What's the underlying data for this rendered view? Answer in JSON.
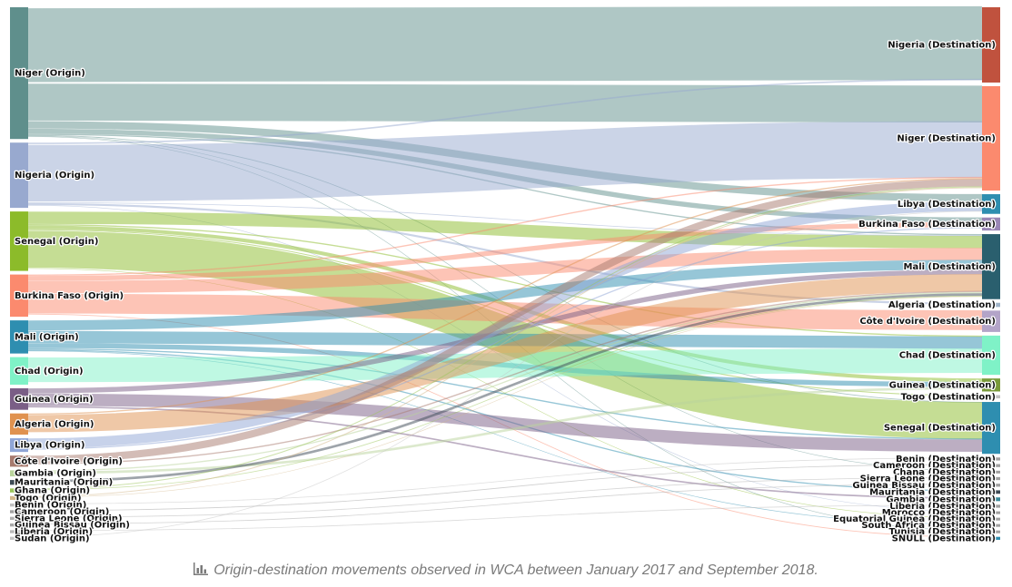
{
  "caption": {
    "icon": "bar-chart-icon",
    "text": "Origin-destination movements observed in WCA between January 2017 and September 2018."
  },
  "chart_data": {
    "type": "sankey",
    "title": "",
    "nodes": [
      {
        "name": "Niger (Origin)",
        "side": "origin",
        "color": "#5f8f8c"
      },
      {
        "name": "Nigeria (Origin)",
        "side": "origin",
        "color": "#98a9cf"
      },
      {
        "name": "Senegal (Origin)",
        "side": "origin",
        "color": "#8cbb2a"
      },
      {
        "name": "Burkina Faso (Origin)",
        "side": "origin",
        "color": "#fb8a6e"
      },
      {
        "name": "Mali (Origin)",
        "side": "origin",
        "color": "#2e8eb0"
      },
      {
        "name": "Chad (Origin)",
        "side": "origin",
        "color": "#7ff2c7"
      },
      {
        "name": "Guinea (Origin)",
        "side": "origin",
        "color": "#7a5e86"
      },
      {
        "name": "Algeria (Origin)",
        "side": "origin",
        "color": "#e0924f"
      },
      {
        "name": "Libya (Origin)",
        "side": "origin",
        "color": "#8fa5d6"
      },
      {
        "name": "Côte d'Ivoire (Origin)",
        "side": "origin",
        "color": "#a77a6e"
      },
      {
        "name": "Gambia (Origin)",
        "side": "origin",
        "color": "#b9d49b"
      },
      {
        "name": "Mauritania (Origin)",
        "side": "origin",
        "color": "#3d4a55"
      },
      {
        "name": "Ghana (Origin)",
        "side": "origin",
        "color": "#9bc65a"
      },
      {
        "name": "Togo (Origin)",
        "side": "origin",
        "color": "#d3b88a"
      },
      {
        "name": "Benin (Origin)",
        "side": "origin",
        "color": "#c0c0c0"
      },
      {
        "name": "Cameroon (Origin)",
        "side": "origin",
        "color": "#a0a0a0"
      },
      {
        "name": "Sierra Leone (Origin)",
        "side": "origin",
        "color": "#b0b0b0"
      },
      {
        "name": "Guinea Bissau (Origin)",
        "side": "origin",
        "color": "#a8a8a8"
      },
      {
        "name": "Liberia (Origin)",
        "side": "origin",
        "color": "#b8b8b8"
      },
      {
        "name": "Sudan (Origin)",
        "side": "origin",
        "color": "#c4c4c4"
      },
      {
        "name": "Nigeria (Destination)",
        "side": "destination",
        "color": "#c0523e"
      },
      {
        "name": "Niger (Destination)",
        "side": "destination",
        "color": "#fb8a6e"
      },
      {
        "name": "Libya (Destination)",
        "side": "destination",
        "color": "#2e8eb0"
      },
      {
        "name": "Burkina Faso (Destination)",
        "side": "destination",
        "color": "#9a86b6"
      },
      {
        "name": "Mali (Destination)",
        "side": "destination",
        "color": "#2a5f6e"
      },
      {
        "name": "Algeria (Destination)",
        "side": "destination",
        "color": "#9fb3c8"
      },
      {
        "name": "Côte d'Ivoire (Destination)",
        "side": "destination",
        "color": "#b3a4c8"
      },
      {
        "name": "Chad (Destination)",
        "side": "destination",
        "color": "#7ff2c7"
      },
      {
        "name": "Guinea (Destination)",
        "side": "destination",
        "color": "#7a9a3a"
      },
      {
        "name": "Togo (Destination)",
        "side": "destination",
        "color": "#c0c0c0"
      },
      {
        "name": "Senegal (Destination)",
        "side": "destination",
        "color": "#2e8eb0"
      },
      {
        "name": "Benin (Destination)",
        "side": "destination",
        "color": "#a0a0a0"
      },
      {
        "name": "Cameroon (Destination)",
        "side": "destination",
        "color": "#a0a0a0"
      },
      {
        "name": "Chana (Destination)",
        "side": "destination",
        "color": "#a0a0a0"
      },
      {
        "name": "Sierra Leone (Destination)",
        "side": "destination",
        "color": "#a0a0a0"
      },
      {
        "name": "Guinea Bissau (Destination)",
        "side": "destination",
        "color": "#a0a0a0"
      },
      {
        "name": "Mauritania (Destination)",
        "side": "destination",
        "color": "#3d4a55"
      },
      {
        "name": "Gambia (Destination)",
        "side": "destination",
        "color": "#3a8a9a"
      },
      {
        "name": "Liberia (Destination)",
        "side": "destination",
        "color": "#a0a0a0"
      },
      {
        "name": "Morocco (Destination)",
        "side": "destination",
        "color": "#a0a0a0"
      },
      {
        "name": "Equatorial Guinea (Destination)",
        "side": "destination",
        "color": "#a0a0a0"
      },
      {
        "name": "South Africa (Destination)",
        "side": "destination",
        "color": "#a0a0a0"
      },
      {
        "name": "Tunisia (Destination)",
        "side": "destination",
        "color": "#a0a0a0"
      },
      {
        "name": "SNULL (Destination)",
        "side": "destination",
        "color": "#2e8eb0"
      }
    ],
    "links": [
      {
        "source": 0,
        "target": 20,
        "value": 30
      },
      {
        "source": 0,
        "target": 21,
        "value": 15
      },
      {
        "source": 0,
        "target": 22,
        "value": 3
      },
      {
        "source": 0,
        "target": 23,
        "value": 2
      },
      {
        "source": 0,
        "target": 24,
        "value": 0.5
      },
      {
        "source": 0,
        "target": 30,
        "value": 0.3
      },
      {
        "source": 1,
        "target": 21,
        "value": 23
      },
      {
        "source": 1,
        "target": 20,
        "value": 0.6
      },
      {
        "source": 1,
        "target": 24,
        "value": 0.3
      },
      {
        "source": 2,
        "target": 30,
        "value": 15
      },
      {
        "source": 2,
        "target": 24,
        "value": 5
      },
      {
        "source": 2,
        "target": 28,
        "value": 1.5
      },
      {
        "source": 2,
        "target": 27,
        "value": 0.5
      },
      {
        "source": 3,
        "target": 26,
        "value": 8
      },
      {
        "source": 3,
        "target": 24,
        "value": 5
      },
      {
        "source": 3,
        "target": 23,
        "value": 2
      },
      {
        "source": 3,
        "target": 21,
        "value": 0.5
      },
      {
        "source": 4,
        "target": 27,
        "value": 5
      },
      {
        "source": 4,
        "target": 24,
        "value": 4
      },
      {
        "source": 4,
        "target": 28,
        "value": 2
      },
      {
        "source": 4,
        "target": 30,
        "value": 0.5
      },
      {
        "source": 4,
        "target": 36,
        "value": 0.5
      },
      {
        "source": 5,
        "target": 27,
        "value": 10
      },
      {
        "source": 6,
        "target": 30,
        "value": 5
      },
      {
        "source": 6,
        "target": 24,
        "value": 2
      },
      {
        "source": 6,
        "target": 37,
        "value": 0.6
      },
      {
        "source": 7,
        "target": 24,
        "value": 7
      },
      {
        "source": 7,
        "target": 21,
        "value": 0.5
      },
      {
        "source": 8,
        "target": 22,
        "value": 4
      },
      {
        "source": 8,
        "target": 23,
        "value": 0.5
      },
      {
        "source": 9,
        "target": 21,
        "value": 3
      },
      {
        "source": 9,
        "target": 24,
        "value": 0.5
      },
      {
        "source": 10,
        "target": 28,
        "value": 1
      },
      {
        "source": 10,
        "target": 24,
        "value": 0.5
      },
      {
        "source": 11,
        "target": 24,
        "value": 1
      },
      {
        "source": 12,
        "target": 21,
        "value": 0.4
      },
      {
        "source": 12,
        "target": 24,
        "value": 0.3
      },
      {
        "source": 13,
        "target": 21,
        "value": 0.4
      },
      {
        "source": 13,
        "target": 24,
        "value": 0.2
      },
      {
        "source": 14,
        "target": 31,
        "value": 0.3
      },
      {
        "source": 15,
        "target": 32,
        "value": 0.3
      },
      {
        "source": 16,
        "target": 34,
        "value": 0.3
      },
      {
        "source": 17,
        "target": 35,
        "value": 0.3
      },
      {
        "source": 18,
        "target": 38,
        "value": 0.3
      },
      {
        "source": 19,
        "target": 22,
        "value": 0.3
      },
      {
        "source": 0,
        "target": 33,
        "value": 0.2
      },
      {
        "source": 1,
        "target": 39,
        "value": 0.2
      },
      {
        "source": 2,
        "target": 40,
        "value": 0.2
      },
      {
        "source": 4,
        "target": 41,
        "value": 0.2
      },
      {
        "source": 0,
        "target": 42,
        "value": 0.2
      },
      {
        "source": 3,
        "target": 43,
        "value": 0.3
      },
      {
        "source": 1,
        "target": 25,
        "value": 0.8
      },
      {
        "source": 2,
        "target": 29,
        "value": 0.4
      }
    ]
  }
}
